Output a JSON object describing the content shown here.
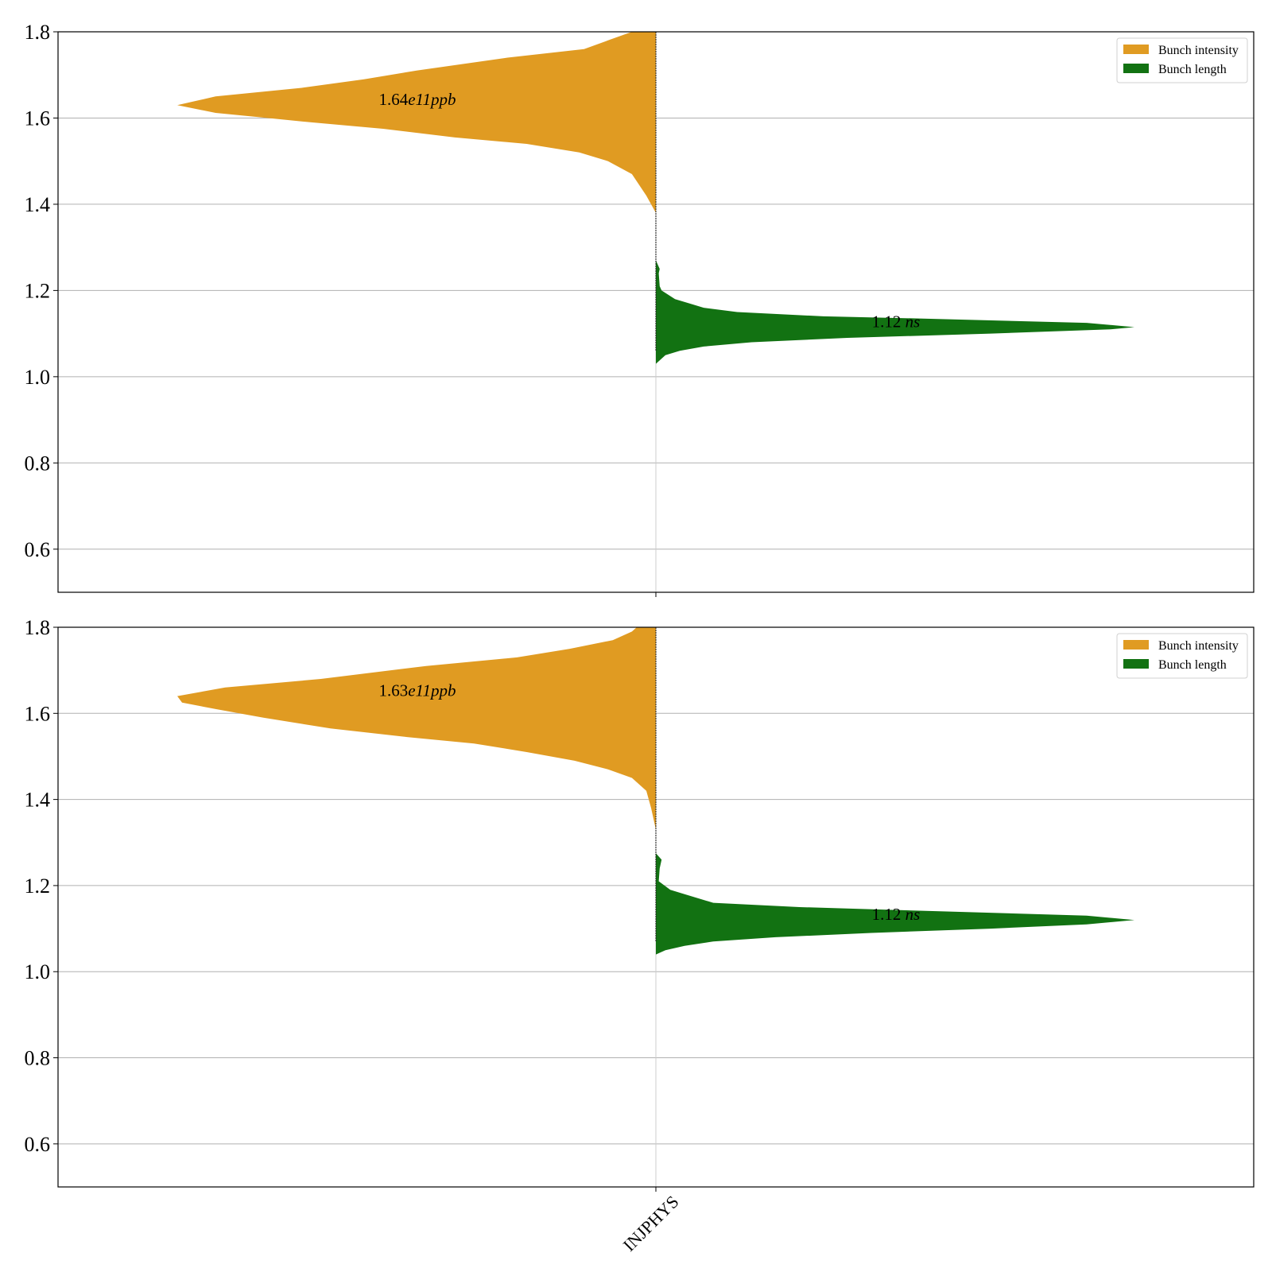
{
  "chart_data": [
    {
      "type": "violin",
      "title": "",
      "xlabel": "",
      "ylabel": "",
      "categories": [
        "INJPHYS"
      ],
      "show_category_labels": false,
      "ylim": [
        0.5,
        1.8
      ],
      "yticks": [
        0.6,
        0.8,
        1.0,
        1.2,
        1.4,
        1.6,
        1.8
      ],
      "grid": true,
      "legend_position": "upper right",
      "series": [
        {
          "name": "Bunch intensity",
          "color": "#e09b22",
          "side": "left",
          "median_label": "1.64",
          "median_exponent": "e11",
          "median_unit": "ppb",
          "density": [
            [
              1.38,
              0.0
            ],
            [
              1.42,
              0.02
            ],
            [
              1.47,
              0.05
            ],
            [
              1.5,
              0.1
            ],
            [
              1.52,
              0.16
            ],
            [
              1.54,
              0.27
            ],
            [
              1.555,
              0.42
            ],
            [
              1.575,
              0.57
            ],
            [
              1.59,
              0.72
            ],
            [
              1.6,
              0.81
            ],
            [
              1.612,
              0.92
            ],
            [
              1.63,
              1.0
            ],
            [
              1.65,
              0.92
            ],
            [
              1.67,
              0.74
            ],
            [
              1.69,
              0.61
            ],
            [
              1.71,
              0.5
            ],
            [
              1.74,
              0.31
            ],
            [
              1.76,
              0.15
            ],
            [
              1.78,
              0.1
            ],
            [
              1.8,
              0.05
            ]
          ]
        },
        {
          "name": "Bunch length",
          "color": "#127212",
          "side": "right",
          "median_label": "1.12",
          "median_unit": "ns",
          "density": [
            [
              1.03,
              0.0
            ],
            [
              1.05,
              0.02
            ],
            [
              1.06,
              0.05
            ],
            [
              1.07,
              0.1
            ],
            [
              1.08,
              0.2
            ],
            [
              1.09,
              0.4
            ],
            [
              1.1,
              0.7
            ],
            [
              1.11,
              0.95
            ],
            [
              1.115,
              1.0
            ],
            [
              1.125,
              0.9
            ],
            [
              1.135,
              0.55
            ],
            [
              1.14,
              0.35
            ],
            [
              1.15,
              0.17
            ],
            [
              1.16,
              0.1
            ],
            [
              1.18,
              0.04
            ],
            [
              1.2,
              0.012
            ],
            [
              1.21,
              0.008
            ],
            [
              1.24,
              0.006
            ],
            [
              1.25,
              0.008
            ],
            [
              1.27,
              0.0
            ]
          ]
        }
      ]
    },
    {
      "type": "violin",
      "title": "",
      "xlabel": "",
      "ylabel": "",
      "categories": [
        "INJPHYS"
      ],
      "show_category_labels": true,
      "ylim": [
        0.5,
        1.8
      ],
      "yticks": [
        0.6,
        0.8,
        1.0,
        1.2,
        1.4,
        1.6,
        1.8
      ],
      "grid": true,
      "legend_position": "upper right",
      "series": [
        {
          "name": "Bunch intensity",
          "color": "#e09b22",
          "side": "left",
          "median_label": "1.63",
          "median_exponent": "e11",
          "median_unit": "ppb",
          "density": [
            [
              1.33,
              0.0
            ],
            [
              1.38,
              0.01
            ],
            [
              1.42,
              0.02
            ],
            [
              1.45,
              0.05
            ],
            [
              1.47,
              0.1
            ],
            [
              1.49,
              0.17
            ],
            [
              1.51,
              0.27
            ],
            [
              1.53,
              0.38
            ],
            [
              1.545,
              0.52
            ],
            [
              1.565,
              0.68
            ],
            [
              1.59,
              0.82
            ],
            [
              1.61,
              0.92
            ],
            [
              1.625,
              0.99
            ],
            [
              1.64,
              1.0
            ],
            [
              1.66,
              0.9
            ],
            [
              1.68,
              0.7
            ],
            [
              1.71,
              0.48
            ],
            [
              1.73,
              0.29
            ],
            [
              1.75,
              0.18
            ],
            [
              1.77,
              0.09
            ],
            [
              1.79,
              0.05
            ],
            [
              1.8,
              0.04
            ]
          ]
        },
        {
          "name": "Bunch length",
          "color": "#127212",
          "side": "right",
          "median_label": "1.12",
          "median_unit": "ns",
          "density": [
            [
              1.04,
              0.0
            ],
            [
              1.05,
              0.02
            ],
            [
              1.06,
              0.06
            ],
            [
              1.07,
              0.12
            ],
            [
              1.08,
              0.25
            ],
            [
              1.09,
              0.45
            ],
            [
              1.1,
              0.7
            ],
            [
              1.11,
              0.9
            ],
            [
              1.12,
              1.0
            ],
            [
              1.13,
              0.9
            ],
            [
              1.14,
              0.6
            ],
            [
              1.15,
              0.3
            ],
            [
              1.16,
              0.12
            ],
            [
              1.18,
              0.06
            ],
            [
              1.19,
              0.03
            ],
            [
              1.21,
              0.006
            ],
            [
              1.24,
              0.008
            ],
            [
              1.26,
              0.012
            ],
            [
              1.275,
              0.0
            ]
          ]
        }
      ]
    }
  ]
}
